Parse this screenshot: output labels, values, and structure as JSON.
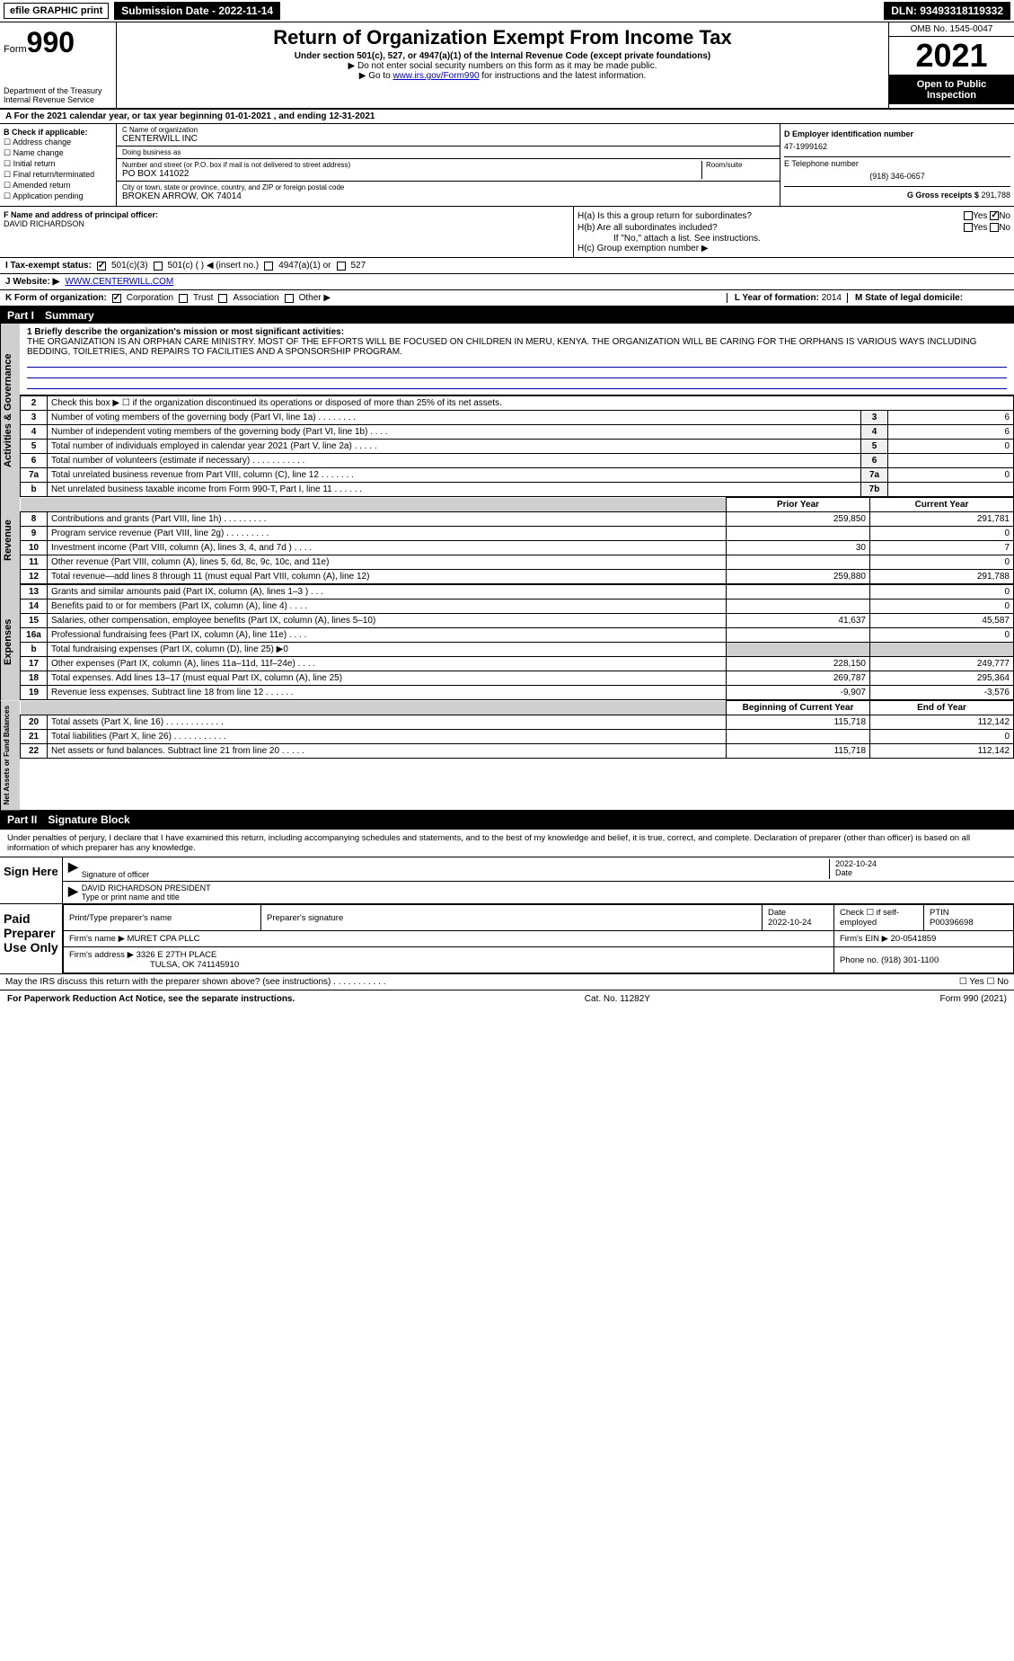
{
  "top": {
    "efile": "efile GRAPHIC print",
    "submission": "Submission Date - 2022-11-14",
    "dln": "DLN: 93493318119332"
  },
  "header": {
    "form_prefix": "Form",
    "form_num": "990",
    "dept": "Department of the Treasury",
    "irs": "Internal Revenue Service",
    "title": "Return of Organization Exempt From Income Tax",
    "subtitle": "Under section 501(c), 527, or 4947(a)(1) of the Internal Revenue Code (except private foundations)",
    "note1": "▶ Do not enter social security numbers on this form as it may be made public.",
    "note2_pre": "▶ Go to ",
    "note2_link": "www.irs.gov/Form990",
    "note2_post": " for instructions and the latest information.",
    "omb": "OMB No. 1545-0047",
    "year": "2021",
    "open": "Open to Public Inspection"
  },
  "row_a": "A For the 2021 calendar year, or tax year beginning 01-01-2021    , and ending 12-31-2021",
  "box_b": {
    "title": "B Check if applicable:",
    "opts": [
      "Address change",
      "Name change",
      "Initial return",
      "Final return/terminated",
      "Amended return",
      "Application pending"
    ]
  },
  "box_c": {
    "label_name": "C Name of organization",
    "name": "CENTERWILL INC",
    "dba_label": "Doing business as",
    "dba": "",
    "addr_label": "Number and street (or P.O. box if mail is not delivered to street address)",
    "room_label": "Room/suite",
    "addr": "PO BOX 141022",
    "city_label": "City or town, state or province, country, and ZIP or foreign postal code",
    "city": "BROKEN ARROW, OK  74014"
  },
  "box_d": {
    "label": "D Employer identification number",
    "val": "47-1999162"
  },
  "box_e": {
    "label": "E Telephone number",
    "val": "(918) 346-0657"
  },
  "box_g": {
    "label": "G Gross receipts $",
    "val": "291,788"
  },
  "box_f": {
    "label": "F  Name and address of principal officer:",
    "val": "DAVID RICHARDSON"
  },
  "box_h": {
    "ha": "H(a)  Is this a group return for subordinates?",
    "hb": "H(b)  Are all subordinates included?",
    "hb_note": "If \"No,\" attach a list. See instructions.",
    "hc": "H(c)  Group exemption number ▶",
    "yes": "Yes",
    "no": "No"
  },
  "row_i": {
    "label": "I  Tax-exempt status:",
    "o1": "501(c)(3)",
    "o2": "501(c) (   ) ◀ (insert no.)",
    "o3": "4947(a)(1) or",
    "o4": "527"
  },
  "row_j": {
    "label": "J   Website: ▶",
    "val": "WWW.CENTERWILL.COM"
  },
  "row_k": {
    "label": "K Form of organization:",
    "o1": "Corporation",
    "o2": "Trust",
    "o3": "Association",
    "o4": "Other ▶"
  },
  "row_l": {
    "label": "L Year of formation:",
    "val": "2014"
  },
  "row_m": {
    "label": "M State of legal domicile:",
    "val": ""
  },
  "part1": {
    "num": "Part I",
    "title": "Summary"
  },
  "mission": {
    "label": "1  Briefly describe the organization's mission or most significant activities:",
    "text": "THE ORGANIZATION IS AN ORPHAN CARE MINISTRY. MOST OF THE EFFORTS WILL BE FOCUSED ON CHILDREN IN MERU, KENYA. THE ORGANIZATION WILL BE CARING FOR THE ORPHANS IS VARIOUS WAYS INCLUDING BEDDING, TOILETRIES, AND REPAIRS TO FACILITIES AND A SPONSORSHIP PROGRAM."
  },
  "gov_rows": [
    {
      "n": "2",
      "label": "Check this box ▶ ☐  if the organization discontinued its operations or disposed of more than 25% of its net assets.",
      "box": "",
      "val": ""
    },
    {
      "n": "3",
      "label": "Number of voting members of the governing body (Part VI, line 1a)  .   .   .   .   .   .   .   .",
      "box": "3",
      "val": "6"
    },
    {
      "n": "4",
      "label": "Number of independent voting members of the governing body (Part VI, line 1b)  .   .   .   .",
      "box": "4",
      "val": "6"
    },
    {
      "n": "5",
      "label": "Total number of individuals employed in calendar year 2021 (Part V, line 2a)  .   .   .   .   .",
      "box": "5",
      "val": "0"
    },
    {
      "n": "6",
      "label": "Total number of volunteers (estimate if necessary)   .   .   .   .   .   .   .   .   .   .   .",
      "box": "6",
      "val": ""
    },
    {
      "n": "7a",
      "label": "Total unrelated business revenue from Part VIII, column (C), line 12   .   .   .   .   .   .   .",
      "box": "7a",
      "val": "0"
    },
    {
      "n": "b",
      "label": "Net unrelated business taxable income from Form 990-T, Part I, line 11   .   .   .   .   .   .",
      "box": "7b",
      "val": ""
    }
  ],
  "col_headers": {
    "prior": "Prior Year",
    "current": "Current Year"
  },
  "rev_rows": [
    {
      "n": "8",
      "label": "Contributions and grants (Part VIII, line 1h)   .   .   .   .   .   .   .   .   .",
      "p": "259,850",
      "c": "291,781"
    },
    {
      "n": "9",
      "label": "Program service revenue (Part VIII, line 2g)   .   .   .   .   .   .   .   .   .",
      "p": "",
      "c": "0"
    },
    {
      "n": "10",
      "label": "Investment income (Part VIII, column (A), lines 3, 4, and 7d )   .   .   .   .",
      "p": "30",
      "c": "7"
    },
    {
      "n": "11",
      "label": "Other revenue (Part VIII, column (A), lines 5, 6d, 8c, 9c, 10c, and 11e)",
      "p": "",
      "c": "0"
    },
    {
      "n": "12",
      "label": "Total revenue—add lines 8 through 11 (must equal Part VIII, column (A), line 12)",
      "p": "259,880",
      "c": "291,788"
    }
  ],
  "exp_rows": [
    {
      "n": "13",
      "label": "Grants and similar amounts paid (Part IX, column (A), lines 1–3 )   .   .   .",
      "p": "",
      "c": "0"
    },
    {
      "n": "14",
      "label": "Benefits paid to or for members (Part IX, column (A), line 4)   .   .   .   .",
      "p": "",
      "c": "0"
    },
    {
      "n": "15",
      "label": "Salaries, other compensation, employee benefits (Part IX, column (A), lines 5–10)",
      "p": "41,637",
      "c": "45,587"
    },
    {
      "n": "16a",
      "label": "Professional fundraising fees (Part IX, column (A), line 11e)   .   .   .   .",
      "p": "",
      "c": "0"
    },
    {
      "n": "b",
      "label": "Total fundraising expenses (Part IX, column (D), line 25) ▶0",
      "p": "SHADE",
      "c": "SHADE"
    },
    {
      "n": "17",
      "label": "Other expenses (Part IX, column (A), lines 11a–11d, 11f–24e)   .   .   .   .",
      "p": "228,150",
      "c": "249,777"
    },
    {
      "n": "18",
      "label": "Total expenses. Add lines 13–17 (must equal Part IX, column (A), line 25)",
      "p": "269,787",
      "c": "295,364"
    },
    {
      "n": "19",
      "label": "Revenue less expenses. Subtract line 18 from line 12   .   .   .   .   .   .",
      "p": "-9,907",
      "c": "-3,576"
    }
  ],
  "na_headers": {
    "beg": "Beginning of Current Year",
    "end": "End of Year"
  },
  "na_rows": [
    {
      "n": "20",
      "label": "Total assets (Part X, line 16)   .   .   .   .   .   .   .   .   .   .   .   .",
      "p": "115,718",
      "c": "112,142"
    },
    {
      "n": "21",
      "label": "Total liabilities (Part X, line 26)   .   .   .   .   .   .   .   .   .   .   .",
      "p": "",
      "c": "0"
    },
    {
      "n": "22",
      "label": "Net assets or fund balances. Subtract line 21 from line 20   .   .   .   .   .",
      "p": "115,718",
      "c": "112,142"
    }
  ],
  "part2": {
    "num": "Part II",
    "title": "Signature Block"
  },
  "sig": {
    "decl": "Under penalties of perjury, I declare that I have examined this return, including accompanying schedules and statements, and to the best of my knowledge and belief, it is true, correct, and complete. Declaration of preparer (other than officer) is based on all information of which preparer has any knowledge.",
    "sign_here": "Sign Here",
    "sig_officer": "Signature of officer",
    "date": "Date",
    "date_val": "2022-10-24",
    "name": "DAVID RICHARDSON  PRESIDENT",
    "name_label": "Type or print name and title",
    "paid": "Paid Preparer Use Only",
    "p_name_label": "Print/Type preparer's name",
    "p_name": "",
    "p_sig_label": "Preparer's signature",
    "p_date_label": "Date",
    "p_date": "2022-10-24",
    "p_check": "Check ☐ if self-employed",
    "ptin_label": "PTIN",
    "ptin": "P00396698",
    "firm_label": "Firm's name   ▶",
    "firm": "MURET CPA PLLC",
    "ein_label": "Firm's EIN ▶",
    "ein": "20-0541859",
    "addr_label": "Firm's address ▶",
    "addr": "3326 E 27TH PLACE",
    "addr2": "TULSA, OK  741145910",
    "phone_label": "Phone no.",
    "phone": "(918) 301-1100",
    "may": "May the IRS discuss this return with the preparer shown above? (see instructions)   .   .   .   .   .   .   .   .   .   .   .",
    "may_yes": "Yes",
    "may_side": "☐ Yes  ☐ No"
  },
  "footer": {
    "left": "For Paperwork Reduction Act Notice, see the separate instructions.",
    "mid": "Cat. No. 11282Y",
    "right": "Form 990 (2021)"
  },
  "vtabs": {
    "ag": "Activities & Governance",
    "rev": "Revenue",
    "exp": "Expenses",
    "na": "Net Assets or Fund Balances"
  }
}
